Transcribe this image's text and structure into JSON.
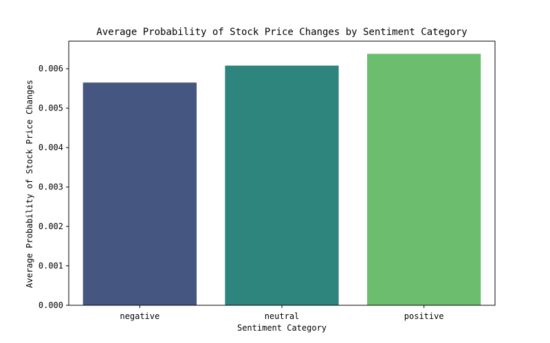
{
  "chart_data": {
    "type": "bar",
    "title": "Average Probability of Stock Price Changes by Sentiment Category",
    "xlabel": "Sentiment Category",
    "ylabel": "Average Probability of Stock Price Changes",
    "categories": [
      "negative",
      "neutral",
      "positive"
    ],
    "values": [
      0.00565,
      0.00608,
      0.00638
    ],
    "colors": [
      "#455681",
      "#2e857e",
      "#6cbe6e"
    ],
    "ylim": [
      0,
      0.0067
    ],
    "yticks": [
      0.0,
      0.001,
      0.002,
      0.003,
      0.004,
      0.005,
      0.006
    ],
    "ytick_labels": [
      "0.000",
      "0.001",
      "0.002",
      "0.003",
      "0.004",
      "0.005",
      "0.006"
    ],
    "grid": false,
    "legend": "none"
  }
}
